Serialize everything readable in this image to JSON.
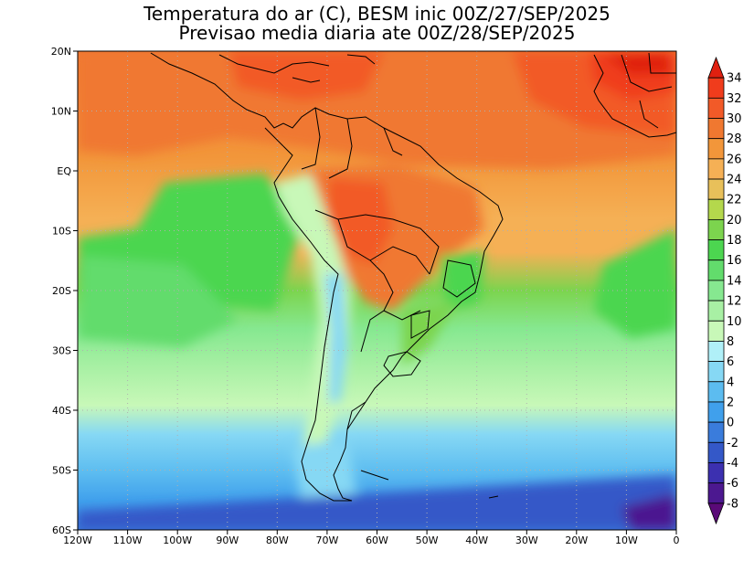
{
  "title": {
    "line1": "Temperatura do ar (C), BESM inic 00Z/27/SEP/2025",
    "line2": "Previsao media diaria ate 00Z/28/SEP/2025"
  },
  "map": {
    "lon_range": [
      -120,
      0
    ],
    "lat_range": [
      -60,
      20
    ],
    "lon_ticks": [
      "120W",
      "110W",
      "100W",
      "90W",
      "80W",
      "70W",
      "60W",
      "50W",
      "40W",
      "30W",
      "20W",
      "10W",
      "0"
    ],
    "lat_ticks": [
      "20N",
      "10N",
      "EQ",
      "10S",
      "20S",
      "30S",
      "40S",
      "50S",
      "60S"
    ]
  },
  "colorbar": {
    "labels": [
      "34",
      "32",
      "30",
      "28",
      "26",
      "24",
      "22",
      "20",
      "18",
      "16",
      "14",
      "12",
      "10",
      "8",
      "6",
      "4",
      "2",
      "0",
      "-2",
      "-4",
      "-6",
      "-8"
    ],
    "colors": [
      "#e02010",
      "#f03c1c",
      "#f25a28",
      "#f07830",
      "#f2963a",
      "#f5b055",
      "#e8c05a",
      "#b4d84c",
      "#7cd44e",
      "#4cd650",
      "#62dc6c",
      "#86e890",
      "#a8f0a4",
      "#c8f8b8",
      "#b0f0f8",
      "#86d8f4",
      "#5cbcf0",
      "#40a0ec",
      "#3a7cdc",
      "#3458c8",
      "#3c30b0",
      "#4c1890",
      "#5a0a78"
    ]
  }
}
